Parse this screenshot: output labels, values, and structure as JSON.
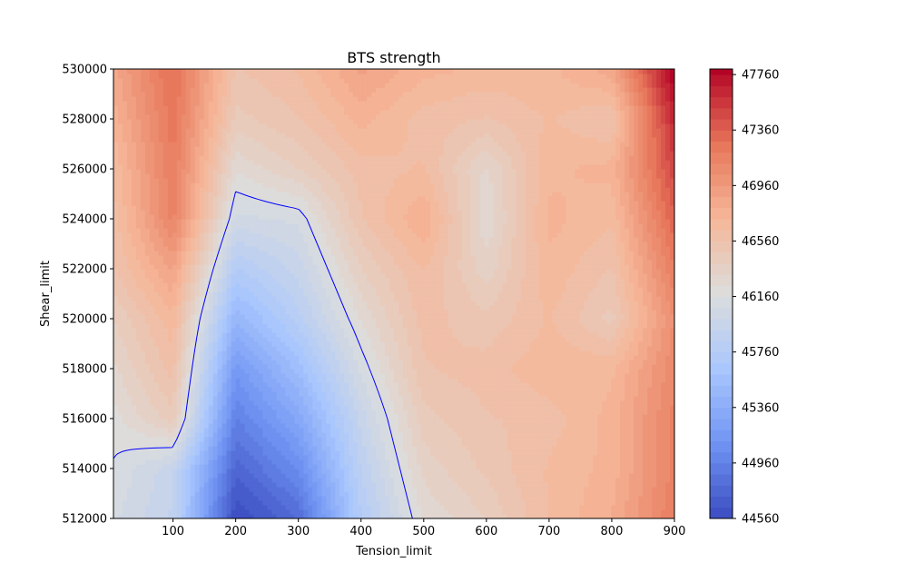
{
  "chart_data": {
    "type": "heatmap",
    "subtype": "filled-contour",
    "title": "BTS strength",
    "xlabel": "Tension_limit",
    "ylabel": "Shear_limit",
    "xlim": [
      5,
      900
    ],
    "ylim": [
      512000,
      530000
    ],
    "x_ticks": [
      100,
      200,
      300,
      400,
      500,
      600,
      700,
      800,
      900
    ],
    "y_ticks": [
      512000,
      514000,
      516000,
      518000,
      520000,
      522000,
      524000,
      526000,
      528000,
      530000
    ],
    "x": [
      5,
      100,
      200,
      300,
      400,
      500,
      600,
      700,
      800,
      900
    ],
    "y": [
      512000,
      514000,
      516000,
      518000,
      520000,
      522000,
      524000,
      526000,
      528000,
      530000
    ],
    "z": [
      [
        46100,
        45900,
        44550,
        44800,
        45750,
        46250,
        46400,
        46650,
        46800,
        47200
      ],
      [
        46150,
        45950,
        44750,
        45050,
        45850,
        46350,
        46500,
        46650,
        46750,
        47150
      ],
      [
        46200,
        46450,
        44950,
        45300,
        45950,
        46450,
        46550,
        46600,
        46750,
        47150
      ],
      [
        46300,
        46600,
        45150,
        45550,
        46100,
        46550,
        46600,
        46700,
        46700,
        47100
      ],
      [
        46400,
        46700,
        45450,
        45800,
        46250,
        46600,
        46500,
        46650,
        46450,
        47050
      ],
      [
        46550,
        46900,
        45750,
        45950,
        46400,
        46650,
        46350,
        46700,
        46550,
        47200
      ],
      [
        46600,
        47150,
        46050,
        46100,
        46550,
        46800,
        46250,
        46750,
        46650,
        47350
      ],
      [
        46650,
        47200,
        46250,
        46400,
        46600,
        46650,
        46300,
        46700,
        46750,
        47500
      ],
      [
        46750,
        47250,
        46450,
        46550,
        46750,
        46600,
        46550,
        46650,
        46550,
        47650
      ],
      [
        46850,
        47300,
        46550,
        46650,
        46900,
        46750,
        46700,
        46700,
        46850,
        47850
      ]
    ],
    "colorbar": {
      "min": 44560,
      "max": 47800,
      "levels_step": 80,
      "ticks": [
        44560,
        44960,
        45360,
        45760,
        46160,
        46560,
        46960,
        47360,
        47760
      ],
      "colormap": "coolwarm"
    },
    "contour_line": {
      "level": 46160,
      "color": "#0000ff"
    },
    "colormap_stops": [
      "#3b4cc0",
      "#7094f3",
      "#aac7fd",
      "#dcdddd",
      "#f6b799",
      "#e7765a",
      "#b40426"
    ]
  }
}
